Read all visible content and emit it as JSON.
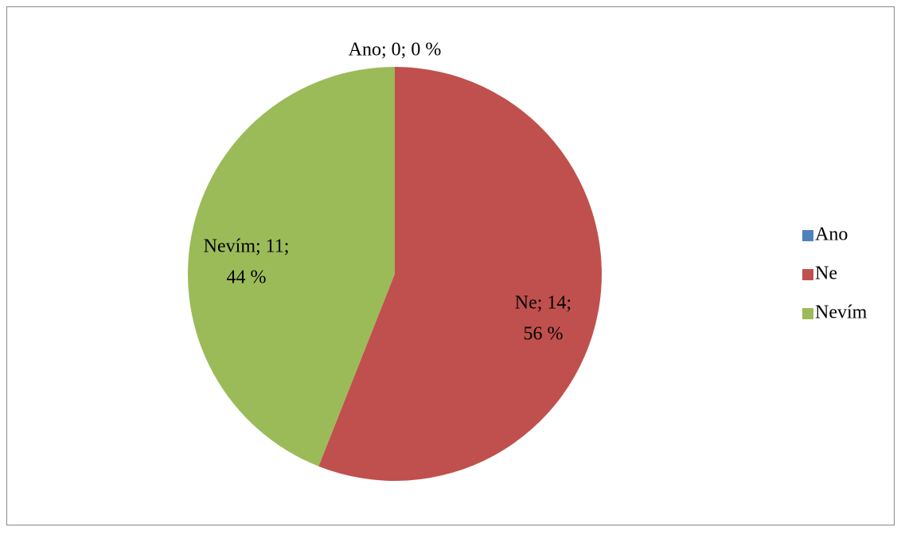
{
  "chart_data": {
    "type": "pie",
    "categories": [
      "Ano",
      "Ne",
      "Nevím"
    ],
    "values": [
      0,
      14,
      11
    ],
    "value_labels": [
      [
        "Ano; 0; 0 %"
      ],
      [
        "Ne; 14;",
        "56 %"
      ],
      [
        "Nevím; 11;",
        "44 %"
      ]
    ],
    "colors": [
      "#4f81bd",
      "#c0504d",
      "#9bbb59"
    ],
    "legend": "right"
  }
}
